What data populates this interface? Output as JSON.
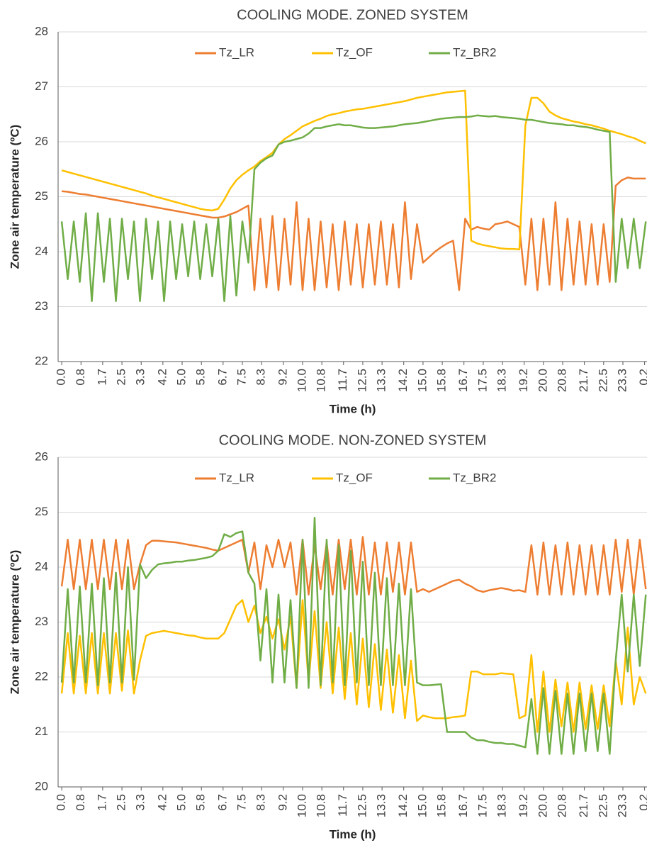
{
  "chart_data": [
    {
      "type": "line",
      "title": "COOLING MODE. ZONED SYSTEM",
      "xlabel": "Time (h)",
      "ylabel": "Zone air temperature (ºC)",
      "ylim": [
        22,
        28
      ],
      "yticks": [
        22,
        23,
        24,
        25,
        26,
        27,
        28
      ],
      "grid": true,
      "legend": "top",
      "xlim": [
        -0.15,
        24.3
      ],
      "xticks": [
        {
          "value": 0,
          "label": "0.0"
        },
        0.8,
        1.7,
        2.5,
        3.3,
        4.2,
        {
          "value": 5,
          "label": "5.0"
        },
        5.8,
        6.7,
        7.5,
        8.3,
        9.2,
        {
          "value": 10,
          "label": "10.0"
        },
        10.8,
        11.7,
        12.5,
        13.3,
        14.2,
        {
          "value": 15,
          "label": "15.0"
        },
        15.8,
        16.7,
        17.5,
        18.3,
        19.2,
        {
          "value": 20,
          "label": "20.0"
        },
        20.8,
        21.7,
        22.5,
        23.3,
        {
          "value": 24.2,
          "label": "0.2"
        }
      ],
      "x": [
        0,
        0.25,
        0.5,
        0.75,
        1,
        1.25,
        1.5,
        1.75,
        2,
        2.25,
        2.5,
        2.75,
        3,
        3.25,
        3.5,
        3.75,
        4,
        4.25,
        4.5,
        4.75,
        5,
        5.25,
        5.5,
        5.75,
        6,
        6.25,
        6.5,
        6.75,
        7,
        7.25,
        7.5,
        7.75,
        8,
        8.25,
        8.5,
        8.75,
        9,
        9.25,
        9.5,
        9.75,
        10,
        10.25,
        10.5,
        10.75,
        11,
        11.25,
        11.5,
        11.75,
        12,
        12.25,
        12.5,
        12.75,
        13,
        13.25,
        13.5,
        13.75,
        14,
        14.25,
        14.5,
        14.75,
        15,
        15.25,
        15.5,
        15.75,
        16,
        16.25,
        16.5,
        16.75,
        17,
        17.25,
        17.5,
        17.75,
        18,
        18.25,
        18.5,
        18.75,
        19,
        19.25,
        19.5,
        19.75,
        20,
        20.25,
        20.5,
        20.75,
        21,
        21.25,
        21.5,
        21.75,
        22,
        22.25,
        22.5,
        22.75,
        23,
        23.25,
        23.5,
        23.75,
        24,
        24.25
      ],
      "series": [
        {
          "name": "Tz_LR",
          "color": "#ed7d31",
          "values": [
            25.1,
            25.09,
            25.07,
            25.05,
            25.04,
            25.02,
            25.0,
            24.98,
            24.96,
            24.94,
            24.92,
            24.9,
            24.88,
            24.86,
            24.84,
            24.82,
            24.8,
            24.78,
            24.76,
            24.74,
            24.72,
            24.7,
            24.68,
            24.66,
            24.64,
            24.62,
            24.62,
            24.64,
            24.68,
            24.72,
            24.78,
            24.84,
            23.3,
            24.6,
            23.35,
            24.65,
            23.3,
            24.6,
            23.4,
            24.9,
            23.3,
            24.6,
            23.3,
            24.55,
            23.35,
            24.5,
            23.3,
            24.55,
            23.4,
            24.5,
            23.35,
            24.5,
            23.4,
            24.55,
            23.4,
            24.5,
            23.35,
            24.9,
            23.5,
            24.5,
            23.8,
            23.9,
            24.0,
            24.08,
            24.15,
            24.2,
            23.3,
            24.6,
            24.4,
            24.45,
            24.42,
            24.4,
            24.5,
            24.52,
            24.55,
            24.5,
            24.45,
            23.4,
            24.6,
            23.3,
            24.6,
            23.4,
            24.9,
            23.3,
            24.6,
            23.4,
            24.55,
            23.4,
            24.5,
            23.4,
            24.5,
            23.45,
            25.2,
            25.3,
            25.35,
            25.33,
            25.33,
            25.33
          ]
        },
        {
          "name": "Tz_OF",
          "color": "#ffc000",
          "values": [
            25.48,
            25.45,
            25.42,
            25.39,
            25.36,
            25.33,
            25.3,
            25.27,
            25.24,
            25.21,
            25.18,
            25.15,
            25.12,
            25.09,
            25.06,
            25.02,
            24.99,
            24.96,
            24.93,
            24.9,
            24.87,
            24.84,
            24.81,
            24.78,
            24.76,
            24.75,
            24.78,
            24.95,
            25.15,
            25.3,
            25.4,
            25.48,
            25.55,
            25.65,
            25.72,
            25.8,
            25.95,
            26.05,
            26.12,
            26.2,
            26.28,
            26.33,
            26.38,
            26.42,
            26.47,
            26.5,
            26.52,
            26.55,
            26.57,
            26.59,
            26.6,
            26.62,
            26.64,
            26.66,
            26.68,
            26.7,
            26.72,
            26.74,
            26.77,
            26.8,
            26.82,
            26.84,
            26.86,
            26.88,
            26.9,
            26.91,
            26.92,
            26.93,
            24.2,
            24.15,
            24.12,
            24.1,
            24.08,
            24.06,
            24.05,
            24.05,
            24.04,
            26.3,
            26.8,
            26.8,
            26.7,
            26.55,
            26.48,
            26.43,
            26.4,
            26.37,
            26.35,
            26.32,
            26.3,
            26.27,
            26.24,
            26.2,
            26.17,
            26.14,
            26.1,
            26.07,
            26.02,
            25.97
          ]
        },
        {
          "name": "Tz_BR2",
          "color": "#70ad47",
          "values": [
            24.55,
            23.5,
            24.55,
            23.45,
            24.7,
            23.1,
            24.7,
            23.45,
            24.6,
            23.1,
            24.6,
            23.5,
            24.55,
            23.1,
            24.6,
            23.5,
            24.55,
            23.1,
            24.55,
            23.5,
            24.5,
            23.55,
            24.55,
            23.5,
            24.5,
            23.55,
            24.6,
            23.1,
            24.65,
            23.2,
            24.55,
            23.8,
            25.5,
            25.62,
            25.7,
            25.75,
            25.95,
            26.0,
            26.02,
            26.05,
            26.08,
            26.15,
            26.25,
            26.25,
            26.28,
            26.3,
            26.32,
            26.3,
            26.3,
            26.28,
            26.26,
            26.25,
            26.25,
            26.26,
            26.27,
            26.28,
            26.3,
            26.32,
            26.33,
            26.34,
            26.36,
            26.38,
            26.4,
            26.42,
            26.43,
            26.44,
            26.45,
            26.45,
            26.46,
            26.48,
            26.47,
            26.46,
            26.47,
            26.45,
            26.44,
            26.43,
            26.42,
            26.4,
            26.4,
            26.38,
            26.36,
            26.34,
            26.33,
            26.32,
            26.3,
            26.3,
            26.28,
            26.27,
            26.25,
            26.22,
            26.2,
            26.18,
            23.45,
            24.6,
            23.7,
            24.6,
            23.7,
            24.55
          ]
        }
      ]
    },
    {
      "type": "line",
      "title": "COOLING MODE. NON-ZONED SYSTEM",
      "xlabel": "Time (h)",
      "ylabel": "Zone air temperature (ºC)",
      "ylim": [
        20,
        26
      ],
      "yticks": [
        20,
        21,
        22,
        23,
        24,
        25,
        26
      ],
      "grid": true,
      "legend": "top",
      "xlim": [
        -0.15,
        24.3
      ],
      "xticks": [
        {
          "value": 0,
          "label": "0.0"
        },
        0.8,
        1.7,
        2.5,
        3.3,
        4.2,
        {
          "value": 5,
          "label": "5.0"
        },
        5.8,
        6.7,
        7.5,
        8.3,
        9.2,
        {
          "value": 10,
          "label": "10.0"
        },
        10.8,
        11.7,
        12.5,
        13.3,
        14.2,
        {
          "value": 15,
          "label": "15.0"
        },
        15.8,
        16.7,
        17.5,
        18.3,
        19.2,
        {
          "value": 20,
          "label": "20.0"
        },
        20.8,
        21.7,
        22.5,
        23.3,
        {
          "value": 24.2,
          "label": "0.2"
        }
      ],
      "x": [
        0,
        0.25,
        0.5,
        0.75,
        1,
        1.25,
        1.5,
        1.75,
        2,
        2.25,
        2.5,
        2.75,
        3,
        3.25,
        3.5,
        3.75,
        4,
        4.25,
        4.5,
        4.75,
        5,
        5.25,
        5.5,
        5.75,
        6,
        6.25,
        6.5,
        6.75,
        7,
        7.25,
        7.5,
        7.75,
        8,
        8.25,
        8.5,
        8.75,
        9,
        9.25,
        9.5,
        9.75,
        10,
        10.25,
        10.5,
        10.75,
        11,
        11.25,
        11.5,
        11.75,
        12,
        12.25,
        12.5,
        12.75,
        13,
        13.25,
        13.5,
        13.75,
        14,
        14.25,
        14.5,
        14.75,
        15,
        15.25,
        15.5,
        15.75,
        16,
        16.25,
        16.5,
        16.75,
        17,
        17.25,
        17.5,
        17.75,
        18,
        18.25,
        18.5,
        18.75,
        19,
        19.25,
        19.5,
        19.75,
        20,
        20.25,
        20.5,
        20.75,
        21,
        21.25,
        21.5,
        21.75,
        22,
        22.25,
        22.5,
        22.75,
        23,
        23.25,
        23.5,
        23.75,
        24,
        24.25
      ],
      "series": [
        {
          "name": "Tz_LR",
          "color": "#ed7d31",
          "values": [
            23.65,
            24.5,
            23.6,
            24.5,
            23.6,
            24.5,
            23.6,
            24.5,
            23.6,
            24.5,
            23.6,
            24.5,
            23.6,
            24.05,
            24.4,
            24.48,
            24.48,
            24.47,
            24.46,
            24.45,
            24.43,
            24.41,
            24.39,
            24.37,
            24.35,
            24.32,
            24.3,
            24.35,
            24.4,
            24.45,
            24.5,
            23.9,
            24.45,
            23.6,
            24.4,
            24.0,
            24.5,
            24.0,
            24.45,
            23.5,
            24.5,
            23.5,
            24.4,
            23.6,
            24.45,
            23.5,
            24.5,
            23.6,
            24.5,
            23.5,
            24.55,
            23.5,
            24.45,
            23.5,
            24.45,
            23.55,
            24.45,
            23.5,
            24.45,
            23.55,
            23.6,
            23.55,
            23.6,
            23.65,
            23.7,
            23.75,
            23.77,
            23.7,
            23.65,
            23.58,
            23.55,
            23.58,
            23.6,
            23.62,
            23.6,
            23.57,
            23.58,
            23.55,
            24.4,
            23.5,
            24.45,
            23.5,
            24.4,
            23.5,
            24.45,
            23.5,
            24.4,
            23.5,
            24.4,
            23.5,
            24.4,
            23.5,
            24.5,
            23.55,
            24.5,
            23.5,
            24.5,
            23.6
          ]
        },
        {
          "name": "Tz_OF",
          "color": "#ffc000",
          "values": [
            21.7,
            22.8,
            21.7,
            22.75,
            21.7,
            22.8,
            21.7,
            22.8,
            21.7,
            22.8,
            21.75,
            22.85,
            21.7,
            22.3,
            22.75,
            22.8,
            22.82,
            22.84,
            22.82,
            22.8,
            22.78,
            22.76,
            22.75,
            22.72,
            22.7,
            22.7,
            22.7,
            22.8,
            23.05,
            23.3,
            23.4,
            23.0,
            23.3,
            22.8,
            23.1,
            22.7,
            23.05,
            22.5,
            23.1,
            21.8,
            23.4,
            21.9,
            23.2,
            21.8,
            23.0,
            21.7,
            22.9,
            21.6,
            22.8,
            21.5,
            22.7,
            21.45,
            22.6,
            21.4,
            22.5,
            21.35,
            22.4,
            21.25,
            22.3,
            21.2,
            21.3,
            21.27,
            21.25,
            21.25,
            21.25,
            21.27,
            21.28,
            21.3,
            22.1,
            22.1,
            22.05,
            22.05,
            22.05,
            22.07,
            22.06,
            22.05,
            21.25,
            21.3,
            22.4,
            21.0,
            22.1,
            21.0,
            21.95,
            21.1,
            21.9,
            21.0,
            21.9,
            21.05,
            21.85,
            21.05,
            21.85,
            21.1,
            22.3,
            21.5,
            22.9,
            21.5,
            22.0,
            21.7
          ]
        },
        {
          "name": "Tz_BR2",
          "color": "#70ad47",
          "values": [
            21.9,
            23.6,
            21.9,
            23.65,
            21.9,
            23.7,
            21.85,
            23.8,
            21.9,
            23.9,
            21.9,
            24.0,
            21.95,
            24.05,
            23.8,
            23.95,
            24.05,
            24.07,
            24.08,
            24.1,
            24.1,
            24.12,
            24.13,
            24.15,
            24.17,
            24.2,
            24.3,
            24.6,
            24.55,
            24.62,
            24.65,
            23.9,
            23.7,
            22.3,
            23.6,
            21.9,
            23.5,
            21.9,
            23.4,
            21.8,
            24.5,
            21.8,
            24.9,
            21.85,
            24.5,
            21.9,
            24.4,
            21.85,
            24.3,
            21.9,
            24.1,
            21.85,
            23.9,
            21.85,
            23.8,
            21.85,
            23.7,
            21.85,
            23.6,
            21.9,
            21.85,
            21.85,
            21.86,
            21.87,
            21.0,
            21.0,
            21.0,
            21.0,
            20.9,
            20.85,
            20.85,
            20.82,
            20.8,
            20.8,
            20.78,
            20.78,
            20.75,
            20.72,
            21.6,
            20.6,
            21.8,
            20.6,
            21.75,
            20.6,
            21.7,
            20.6,
            21.7,
            20.65,
            21.7,
            20.65,
            21.7,
            20.6,
            22.3,
            23.5,
            22.1,
            23.5,
            22.2,
            23.5
          ]
        }
      ]
    }
  ]
}
